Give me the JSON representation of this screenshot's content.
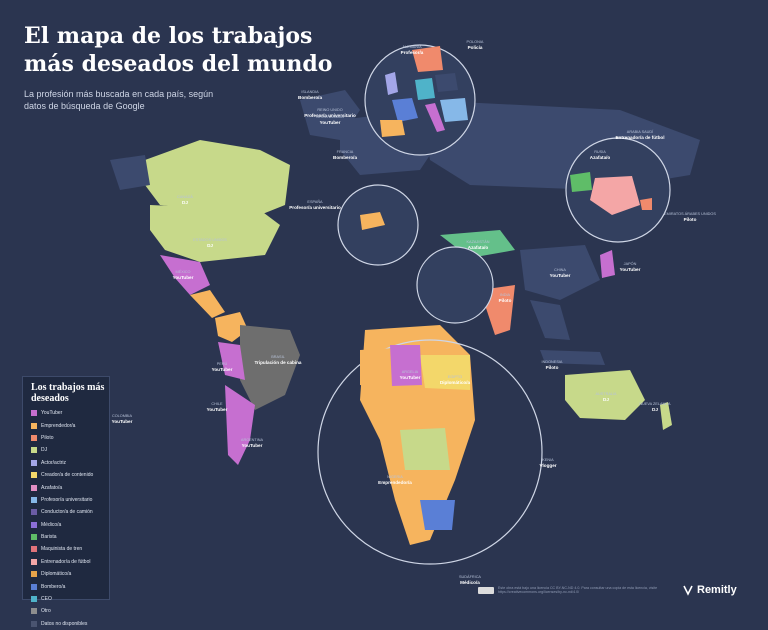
{
  "title_line1": "El mapa de los trabajos",
  "title_line2": "más deseados del mundo",
  "subtitle": "La profesión más buscada en cada país, según datos de búsqueda de Google",
  "legend": {
    "title": "Los trabajos más deseados",
    "items": [
      {
        "label": "YouTuber",
        "color": "#c66fd0"
      },
      {
        "label": "Emprendedor/a",
        "color": "#f6b45e"
      },
      {
        "label": "Piloto",
        "color": "#f08a6c"
      },
      {
        "label": "DJ",
        "color": "#c7d98a"
      },
      {
        "label": "Actor/actriz",
        "color": "#a3a6e8"
      },
      {
        "label": "Creador/a de contenido",
        "color": "#f3d76a"
      },
      {
        "label": "Azafato/a",
        "color": "#e28fc4"
      },
      {
        "label": "Profesor/a universitario",
        "color": "#86b8e8"
      },
      {
        "label": "Conductor/a de camión",
        "color": "#6b5ca5"
      },
      {
        "label": "Médico/a",
        "color": "#8b6fd8"
      },
      {
        "label": "Barista",
        "color": "#5fbd68"
      },
      {
        "label": "Maquinista de tren",
        "color": "#e0737a"
      },
      {
        "label": "Entrenador/a de fútbol",
        "color": "#f4a6a6"
      },
      {
        "label": "Diplomático/a",
        "color": "#e7a34a"
      },
      {
        "label": "Bombero/a",
        "color": "#5a7fd6"
      },
      {
        "label": "CEO",
        "color": "#4fb3c9"
      },
      {
        "label": "Otro",
        "color": "#8e8e8e"
      },
      {
        "label": "Datos no disponibles",
        "color": "#4a5470"
      }
    ]
  },
  "labels": [
    {
      "country": "CANADÁ",
      "job": "DJ"
    },
    {
      "country": "ESTADOS UNIDOS",
      "job": "DJ"
    },
    {
      "country": "MÉXICO",
      "job": "YouTuber"
    },
    {
      "country": "BRASIL",
      "job": "Tripulación de cabina"
    },
    {
      "country": "RUSIA",
      "job": "Azafata/o"
    },
    {
      "country": "CHINA",
      "job": "YouTuber"
    },
    {
      "country": "INDIA",
      "job": "Piloto"
    },
    {
      "country": "AUSTRALIA",
      "job": "DJ"
    },
    {
      "country": "ARGELIA",
      "job": "YouTuber"
    },
    {
      "country": "EGIPTO",
      "job": "Diplomático/a"
    },
    {
      "country": "ARABIA SAUDÍ",
      "job": "Entrenador/a de fútbol"
    },
    {
      "country": "EMIRATOS ÁRABES UNIDOS",
      "job": "Piloto"
    },
    {
      "country": "KAZAJISTÁN",
      "job": "Azafata/o"
    },
    {
      "country": "JAPÓN",
      "job": "YouTuber"
    },
    {
      "country": "INDONESIA",
      "job": "Piloto"
    },
    {
      "country": "SUDÁFRICA",
      "job": "Médico/a"
    },
    {
      "country": "NIGERIA",
      "job": "Emprendedor/a"
    },
    {
      "country": "KENIA",
      "job": "Vlogger"
    },
    {
      "country": "ARGENTINA",
      "job": "YouTuber"
    },
    {
      "country": "CHILE",
      "job": "YouTuber"
    },
    {
      "country": "PERÚ",
      "job": "YouTuber"
    },
    {
      "country": "COLOMBIA",
      "job": "YouTuber"
    },
    {
      "country": "ISLANDIA",
      "job": "Bombero/a"
    },
    {
      "country": "REINO UNIDO",
      "job": "Profesor/a universitario"
    },
    {
      "country": "FRANCIA",
      "job": "Bombero/a"
    },
    {
      "country": "ALEMANIA",
      "job": "Profesor/a"
    },
    {
      "country": "POLONIA",
      "job": "Policía"
    },
    {
      "country": "ESPAÑA",
      "job": "Profesor/a universitario"
    },
    {
      "country": "NUEVA ZELANDA",
      "job": "DJ"
    },
    {
      "country": "GROENLANDIA",
      "job": "YouTuber"
    }
  ],
  "footer": "Este obra está bajo una licencia CC BY-NC-ND 4.0. Para consultar una copia de esta licencia, visite https://creativecommons.org/licenses/by-nc-nd/4.0/",
  "brand": "Remitly"
}
